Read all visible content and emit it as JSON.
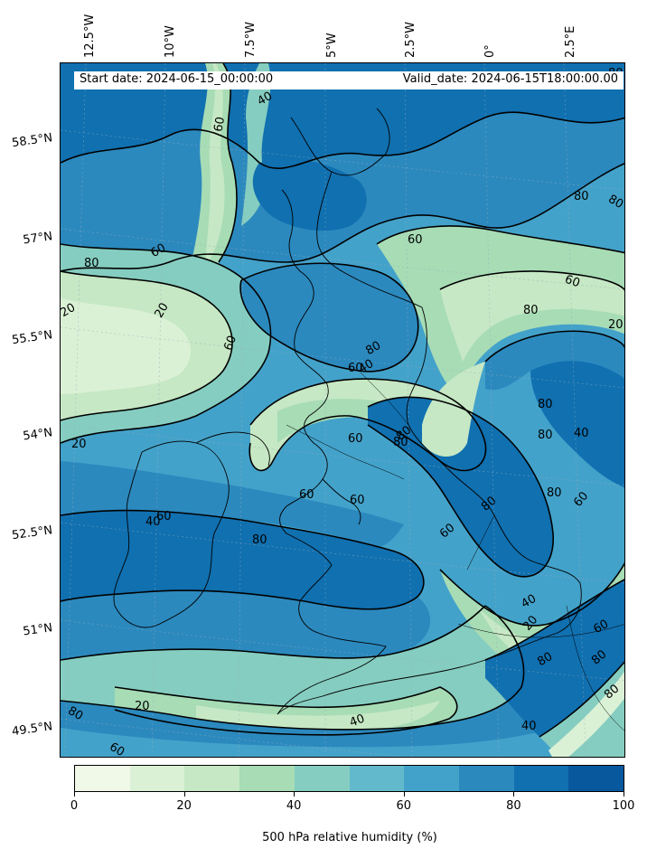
{
  "header": {
    "start_date": "Start date: 2024-06-15_00:00:00",
    "valid_date": "Valid_date: 2024-06-15T18:00:00.00"
  },
  "longitude_labels": [
    "12.5°W",
    "10°W",
    "7.5°W",
    "5°W",
    "2.5°W",
    "0°",
    "2.5°E"
  ],
  "latitude_labels": [
    "58.5°N",
    "57°N",
    "55.5°N",
    "54°N",
    "52.5°N",
    "51°N",
    "49.5°N"
  ],
  "contour_labels": [
    "80",
    "40",
    "60",
    "60",
    "20",
    "20",
    "80",
    "60",
    "80",
    "40",
    "60",
    "60",
    "80",
    "20",
    "80",
    "80",
    "80",
    "40",
    "80",
    "80",
    "60",
    "20",
    "80",
    "80",
    "60",
    "60",
    "60",
    "60",
    "40",
    "60",
    "80",
    "60",
    "40",
    "20",
    "60",
    "40",
    "20",
    "40",
    "80",
    "60",
    "80",
    "80",
    "80",
    "80"
  ],
  "colorbar": {
    "label": "500 hPa relative humidity (%)",
    "ticks": [
      "0",
      "20",
      "40",
      "60",
      "80",
      "100"
    ],
    "min": 0,
    "max": 100,
    "levels": [
      0,
      10,
      20,
      30,
      40,
      50,
      60,
      70,
      80,
      90,
      100
    ],
    "colors": [
      "#f0f9e8",
      "#dbf1d6",
      "#c6e8c4",
      "#a7dcb5",
      "#85cdc0",
      "#63b9cc",
      "#43a2ca",
      "#2b89be",
      "#1070b0",
      "#08589e"
    ]
  }
}
